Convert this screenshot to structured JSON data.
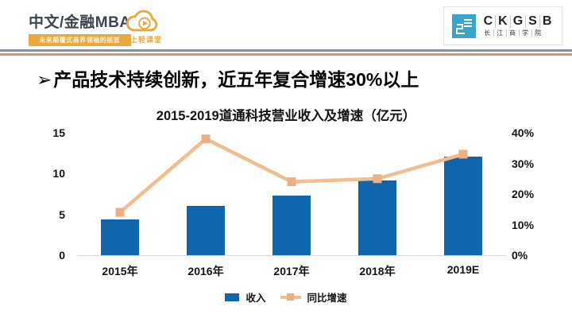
{
  "header": {
    "program": "中文/金融MBA",
    "program_tagline": "未来颠覆式商界领袖的摇篮",
    "cloud_caption": "线上轻课堂",
    "ckgsb_letters": [
      "C",
      "K",
      "G",
      "S",
      "B"
    ],
    "ckgsb_name_chars": [
      "长",
      "江",
      "商",
      "学",
      "院"
    ]
  },
  "slide": {
    "bullet": "➢",
    "title": "产品技术持续创新，近五年复合增速30%以上"
  },
  "chart_data": {
    "type": "bar+line combo",
    "title": "2015-2019道通科技营业收入及增速（亿元）",
    "categories": [
      "2015年",
      "2016年",
      "2017年",
      "2018年",
      "2019E"
    ],
    "series": [
      {
        "name": "收入",
        "type": "bar",
        "axis": "left",
        "unit": "亿元",
        "values": [
          4.4,
          6.0,
          7.3,
          9.2,
          12.1
        ]
      },
      {
        "name": "同比增速",
        "type": "line",
        "axis": "right",
        "unit": "%",
        "values": [
          14,
          38,
          24,
          25,
          33
        ]
      }
    ],
    "left_axis": {
      "ticks": [
        "0",
        "5",
        "10",
        "15"
      ],
      "min": 0,
      "max": 15
    },
    "right_axis": {
      "ticks": [
        "0%",
        "10%",
        "20%",
        "30%",
        "40%"
      ],
      "min": 0,
      "max": 40
    },
    "grid": false,
    "legend_position": "bottom"
  },
  "colors": {
    "bar": "#1066AD",
    "line": "#F0BE8F",
    "marker": "#EFAF85",
    "accent_orange": "#E9A93D",
    "ckgsb_blue": "#3AA5CB",
    "divider_gray": "#8A919E",
    "divider_tan": "#C5977B"
  }
}
